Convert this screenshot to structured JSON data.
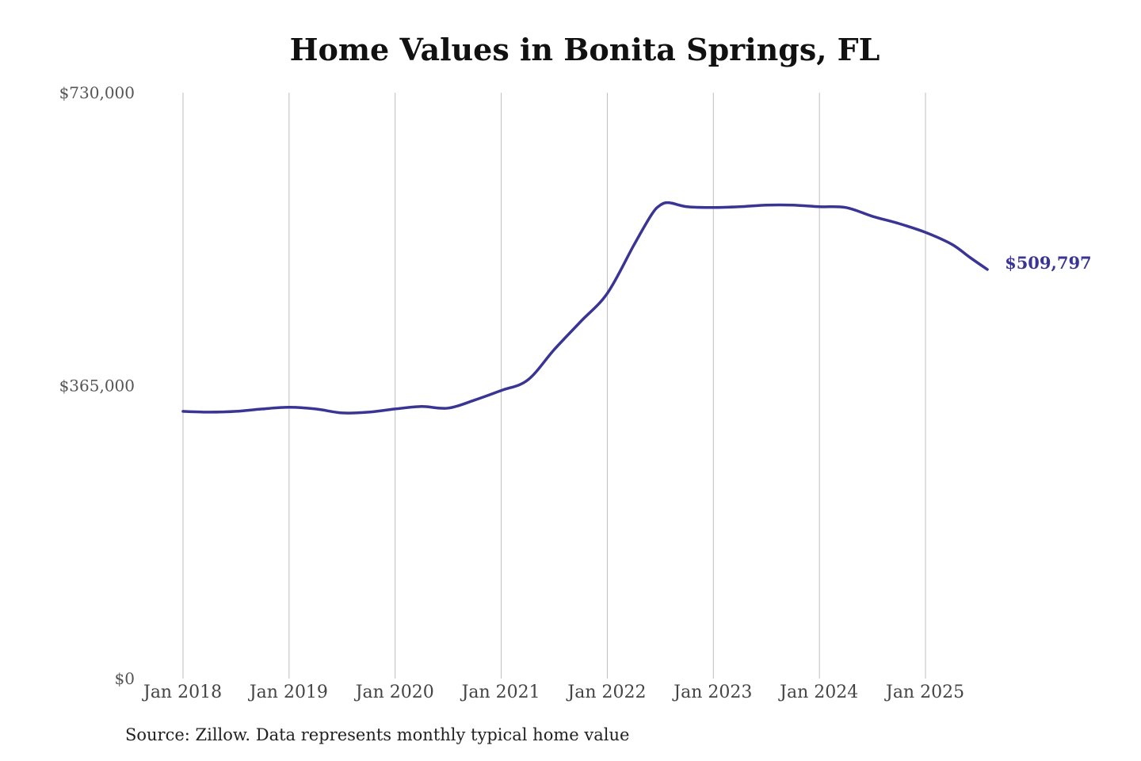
{
  "chart_data": {
    "type": "line",
    "title": "Home Values in Bonita Springs, FL",
    "source": "Source: Zillow. Data represents monthly typical home value",
    "xlabel": "",
    "ylabel": "",
    "ylim": [
      0,
      730000
    ],
    "xlim": [
      "2018-01",
      "2025-08"
    ],
    "y_ticks": [
      {
        "value": 0,
        "label": "$0"
      },
      {
        "value": 365000,
        "label": "$365,000"
      },
      {
        "value": 730000,
        "label": "$730,000"
      }
    ],
    "x_ticks": [
      {
        "value": "2018-01",
        "label": "Jan 2018"
      },
      {
        "value": "2019-01",
        "label": "Jan 2019"
      },
      {
        "value": "2020-01",
        "label": "Jan 2020"
      },
      {
        "value": "2021-01",
        "label": "Jan 2021"
      },
      {
        "value": "2022-01",
        "label": "Jan 2022"
      },
      {
        "value": "2023-01",
        "label": "Jan 2023"
      },
      {
        "value": "2024-01",
        "label": "Jan 2024"
      },
      {
        "value": "2025-01",
        "label": "Jan 2025"
      }
    ],
    "grid": "vertical",
    "line_color": "#3a3494",
    "end_label": "$509,797",
    "series": [
      {
        "points": [
          {
            "x": "2018-01",
            "y": 333000
          },
          {
            "x": "2018-04",
            "y": 332000
          },
          {
            "x": "2018-07",
            "y": 333000
          },
          {
            "x": "2018-10",
            "y": 336000
          },
          {
            "x": "2019-01",
            "y": 338000
          },
          {
            "x": "2019-04",
            "y": 336000
          },
          {
            "x": "2019-07",
            "y": 331000
          },
          {
            "x": "2019-10",
            "y": 332000
          },
          {
            "x": "2020-01",
            "y": 336000
          },
          {
            "x": "2020-04",
            "y": 339000
          },
          {
            "x": "2020-07",
            "y": 337000
          },
          {
            "x": "2020-10",
            "y": 347000
          },
          {
            "x": "2021-01",
            "y": 359000
          },
          {
            "x": "2021-04",
            "y": 372000
          },
          {
            "x": "2021-07",
            "y": 410000
          },
          {
            "x": "2021-10",
            "y": 445000
          },
          {
            "x": "2022-01",
            "y": 480000
          },
          {
            "x": "2022-04",
            "y": 540000
          },
          {
            "x": "2022-06",
            "y": 578000
          },
          {
            "x": "2022-07",
            "y": 590000
          },
          {
            "x": "2022-08",
            "y": 593000
          },
          {
            "x": "2022-10",
            "y": 588000
          },
          {
            "x": "2023-01",
            "y": 587000
          },
          {
            "x": "2023-04",
            "y": 588000
          },
          {
            "x": "2023-07",
            "y": 590000
          },
          {
            "x": "2023-10",
            "y": 590000
          },
          {
            "x": "2024-01",
            "y": 588000
          },
          {
            "x": "2024-04",
            "y": 587000
          },
          {
            "x": "2024-07",
            "y": 576000
          },
          {
            "x": "2024-10",
            "y": 567000
          },
          {
            "x": "2025-01",
            "y": 556000
          },
          {
            "x": "2025-04",
            "y": 541000
          },
          {
            "x": "2025-06",
            "y": 525000
          },
          {
            "x": "2025-08",
            "y": 509797
          }
        ]
      }
    ]
  }
}
